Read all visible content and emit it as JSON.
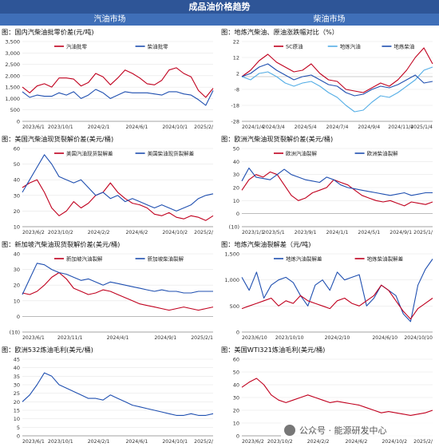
{
  "header": {
    "title": "成品油价格趋势",
    "left_column": "汽油市场",
    "right_column": "柴油市场"
  },
  "watermark": {
    "text": "公众号 · 能源研发中心",
    "icon": "wechat-icon"
  },
  "chart_data": [
    {
      "id": "c1",
      "type": "line",
      "title": "图：国内汽柴油批零价差(元/吨)",
      "ylim": [
        0,
        3500
      ],
      "yticks": [
        "0",
        "500",
        "1,000",
        "1,500",
        "2,000",
        "2,500",
        "3,000",
        "3,500"
      ],
      "xticks": [
        "2023/6/1",
        "2023/10/1",
        "2024/2/1",
        "2024/6/1",
        "2024/10/1",
        "2025/2/"
      ],
      "legend_position": "top",
      "series": [
        {
          "name": "汽油批零",
          "color": "#c0001e",
          "values": [
            1500,
            1250,
            1550,
            1650,
            1500,
            1900,
            1900,
            1850,
            1550,
            1700,
            2100,
            1950,
            1600,
            1900,
            2250,
            2100,
            1900,
            1650,
            1600,
            1800,
            2250,
            2350,
            2100,
            1950,
            1350,
            1050,
            1450
          ]
        },
        {
          "name": "柴油批零",
          "color": "#1f4fb0",
          "values": [
            1300,
            1050,
            1150,
            1100,
            1100,
            1250,
            1150,
            1300,
            1000,
            1150,
            1400,
            1250,
            1000,
            1150,
            1300,
            1250,
            1250,
            1250,
            1200,
            1150,
            1300,
            1300,
            1200,
            1150,
            950,
            700,
            1350
          ]
        }
      ]
    },
    {
      "id": "c2",
      "type": "line",
      "title": "图：地炼汽柴油、原油涨跌幅对比（%）",
      "ylim": [
        -28,
        22
      ],
      "yticks": [
        "-28",
        "-18",
        "-8",
        "2",
        "12",
        "22"
      ],
      "xticks": [
        "2024/1/4",
        "2024/3/4",
        "2024/5/4",
        "2024/7/4",
        "2024/9/4",
        "2024/11/4",
        "2025/1/4"
      ],
      "legend_position": "top",
      "series": [
        {
          "name": "SC原油",
          "color": "#c0001e",
          "values": [
            0,
            4,
            10,
            14,
            9,
            6,
            3,
            4,
            8,
            2,
            -2,
            -3,
            -8,
            -9,
            -10,
            -7,
            -4,
            -6,
            -2,
            4,
            12,
            18,
            8
          ]
        },
        {
          "name": "地炼汽油",
          "color": "#55aee6",
          "values": [
            0,
            -2,
            2,
            3,
            0,
            -4,
            -6,
            -4,
            -3,
            -6,
            -10,
            -13,
            -18,
            -22,
            -21,
            -16,
            -12,
            -13,
            -10,
            -6,
            -2,
            4,
            6
          ]
        },
        {
          "name": "地炼柴油",
          "color": "#1f4fb0",
          "values": [
            0,
            2,
            6,
            8,
            4,
            1,
            -2,
            0,
            1,
            -2,
            -5,
            -6,
            -10,
            -12,
            -11,
            -8,
            -6,
            -7,
            -5,
            -2,
            1,
            -4,
            -3
          ]
        }
      ]
    },
    {
      "id": "c3",
      "type": "line",
      "title": "图：美国汽柴油现货裂解价差(美元/桶)",
      "ylim": [
        10,
        60
      ],
      "yticks": [
        "10",
        "20",
        "30",
        "40",
        "50",
        "60"
      ],
      "xticks": [
        "2023/6/2",
        "2023/10/2",
        "2024/2/2",
        "2024/6/2",
        "2024/10/2",
        "2025/2/"
      ],
      "legend_position": "top",
      "series": [
        {
          "name": "美国汽油现货裂解差",
          "color": "#c0001e",
          "values": [
            35,
            38,
            40,
            32,
            22,
            17,
            20,
            26,
            22,
            25,
            30,
            32,
            38,
            32,
            28,
            25,
            24,
            22,
            18,
            17,
            19,
            16,
            15,
            17,
            16,
            14,
            17
          ]
        },
        {
          "name": "美国柴油现货裂解差",
          "color": "#1f4fb0",
          "values": [
            32,
            40,
            48,
            56,
            50,
            42,
            40,
            38,
            40,
            35,
            30,
            32,
            28,
            30,
            26,
            28,
            26,
            24,
            22,
            24,
            22,
            20,
            22,
            24,
            28,
            30,
            31
          ]
        }
      ]
    },
    {
      "id": "c4",
      "type": "line",
      "title": "图：欧洲汽柴油现货裂解价差(美元/桶)",
      "ylim": [
        -10,
        50
      ],
      "yticks": [
        "(10)",
        "0",
        "10",
        "20",
        "30",
        "40",
        "50"
      ],
      "xticks": [
        "2023/1/1",
        "2023/5/1",
        "2023/9/1",
        "2024/1/1",
        "2024/5/1",
        "2024/9/1",
        "2025/1/"
      ],
      "legend_position": "top",
      "series": [
        {
          "name": "欧洲汽油裂解",
          "color": "#c0001e",
          "values": [
            18,
            26,
            30,
            28,
            32,
            30,
            22,
            14,
            10,
            12,
            16,
            18,
            20,
            26,
            24,
            22,
            18,
            14,
            12,
            10,
            9,
            10,
            8,
            6,
            9,
            8,
            7,
            9
          ]
        },
        {
          "name": "欧洲柴油裂解",
          "color": "#1f4fb0",
          "values": [
            25,
            35,
            28,
            27,
            26,
            30,
            34,
            30,
            28,
            26,
            25,
            24,
            28,
            26,
            22,
            20,
            19,
            18,
            17,
            16,
            15,
            14,
            15,
            16,
            14,
            15,
            16,
            16
          ]
        }
      ]
    },
    {
      "id": "c5",
      "type": "line",
      "title": "图：新加坡汽柴油现货裂解价差(美元/桶)",
      "ylim": [
        -10,
        40
      ],
      "yticks": [
        "(10)",
        "0",
        "10",
        "20",
        "30",
        "40"
      ],
      "xticks": [
        "2023/6/1",
        "2023/11/1",
        "2024/4/1",
        "2024/9/1",
        "2025/2/1"
      ],
      "legend_position": "top",
      "series": [
        {
          "name": "新加坡汽油裂解",
          "color": "#c0001e",
          "values": [
            15,
            14,
            16,
            20,
            25,
            28,
            24,
            18,
            16,
            14,
            15,
            17,
            16,
            14,
            12,
            10,
            8,
            7,
            6,
            5,
            4,
            5,
            6,
            5,
            4,
            5,
            6
          ]
        },
        {
          "name": "新加坡柴油裂解",
          "color": "#1f4fb0",
          "values": [
            14,
            24,
            34,
            33,
            30,
            28,
            27,
            25,
            23,
            24,
            22,
            20,
            22,
            21,
            20,
            19,
            18,
            17,
            16,
            17,
            16,
            16,
            15,
            15,
            16,
            16,
            16
          ]
        }
      ]
    },
    {
      "id": "c6",
      "type": "line",
      "title": "图：地炼汽柴油裂解差（元/吨)",
      "ylim": [
        0,
        1500
      ],
      "yticks": [
        "0",
        "500",
        "1,000",
        "1,500"
      ],
      "xticks": [
        "2023/6/10",
        "2023/10/10",
        "2024/2/10",
        "2024/6/10",
        "2024/10/10"
      ],
      "legend_position": "top",
      "series": [
        {
          "name": "地炼汽油裂解差",
          "color": "#1f4fb0",
          "values": [
            1050,
            800,
            1150,
            650,
            900,
            1000,
            1050,
            950,
            700,
            500,
            900,
            1000,
            800,
            1150,
            1000,
            1050,
            1100,
            500,
            650,
            900,
            800,
            700,
            350,
            200,
            900,
            1200,
            1400
          ]
        },
        {
          "name": "地炼柴油裂解差",
          "color": "#c0001e",
          "values": [
            450,
            500,
            550,
            600,
            650,
            500,
            600,
            550,
            700,
            600,
            550,
            500,
            450,
            600,
            650,
            550,
            500,
            600,
            700,
            900,
            800,
            600,
            400,
            250,
            450,
            550,
            650
          ]
        }
      ]
    },
    {
      "id": "c7",
      "type": "line",
      "title": "图：欧洲532炼油毛利(美元/桶)",
      "ylim": [
        0,
        45
      ],
      "yticks": [
        "0",
        "5",
        "10",
        "15",
        "20",
        "25",
        "30",
        "35",
        "40",
        "45"
      ],
      "xticks": [
        "2023/6/1",
        "2023/10/1",
        "2024/2/1",
        "2024/6/1",
        "2024/10/1",
        "2025/2/"
      ],
      "legend_position": "none",
      "series": [
        {
          "name": "",
          "color": "#1f4fb0",
          "values": [
            20,
            24,
            30,
            37,
            35,
            30,
            28,
            26,
            24,
            22,
            22,
            21,
            24,
            22,
            20,
            18,
            17,
            16,
            15,
            14,
            13,
            12,
            12,
            13,
            12,
            12,
            13
          ]
        }
      ]
    },
    {
      "id": "c8",
      "type": "line",
      "title": "图：美国WTI321炼油毛利(美元/桶)",
      "ylim": [
        0,
        60
      ],
      "yticks": [
        "0",
        "10",
        "20",
        "30",
        "40",
        "50",
        "60"
      ],
      "xticks": [
        "2023/6/2",
        "2023/10/2",
        "2024/2/2",
        "2024/6/2",
        "2024/10/2",
        "2025/2/"
      ],
      "legend_position": "none",
      "series": [
        {
          "name": "",
          "color": "#c0001e",
          "values": [
            38,
            42,
            45,
            40,
            32,
            28,
            26,
            28,
            30,
            32,
            30,
            28,
            26,
            27,
            26,
            25,
            24,
            22,
            20,
            18,
            19,
            18,
            17,
            16,
            17,
            18,
            20
          ]
        }
      ]
    }
  ]
}
